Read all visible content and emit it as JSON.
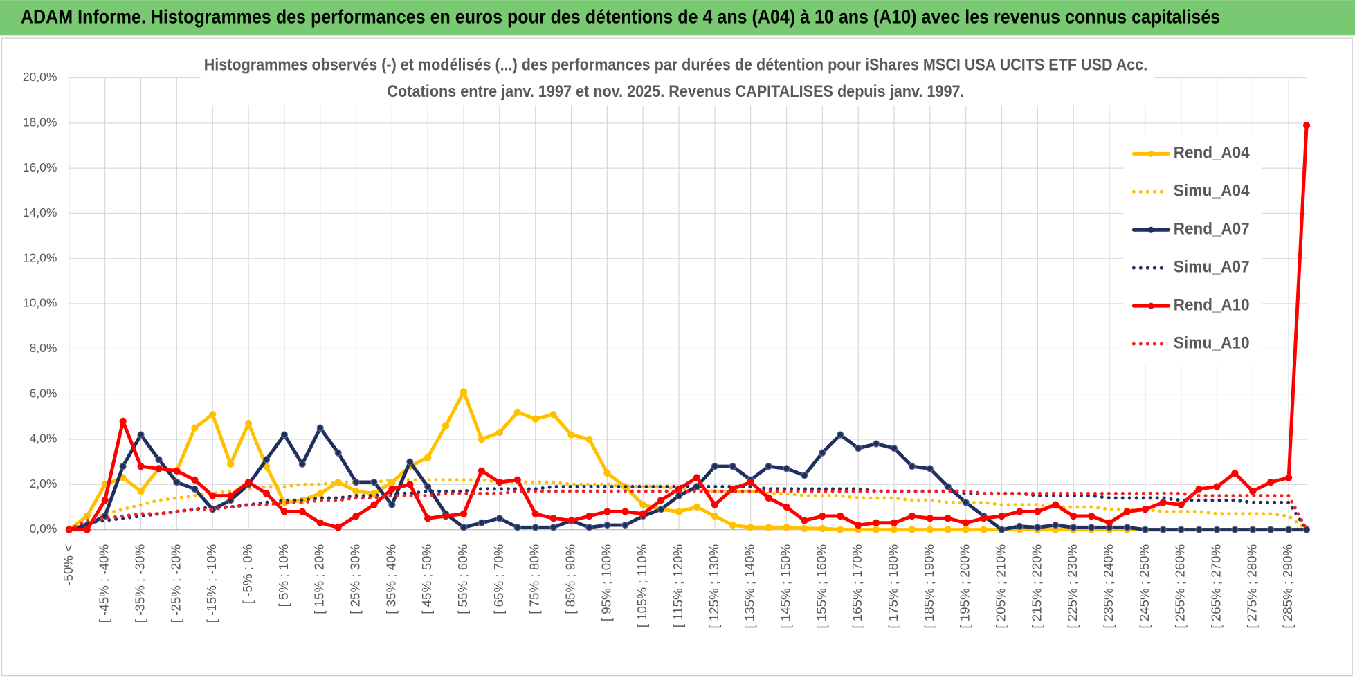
{
  "header": {
    "title": "ADAM Informe. Histogrammes des performances en euros pour des détentions de 4 ans (A04) à 10 ans (A10) avec les revenus connus capitalisés"
  },
  "chart_data": {
    "type": "line",
    "title": "Histogrammes observés (-) et modélisés (...) des performances par durées de détention pour iShares MSCI USA UCITS ETF USD Acc.",
    "subtitle": "Cotations entre janv. 1997 et nov. 2025. Revenus CAPITALISES depuis janv. 1997.",
    "categories": [
      "-50% <",
      null,
      "[ -45% ; -40%",
      null,
      "[ -35% ; -30%",
      null,
      "[ -25% ; -20%",
      null,
      "[ -15% ; -10%",
      null,
      "[ -5% ; 0%",
      null,
      "[ 5% ; 10%",
      null,
      "[ 15% ; 20%",
      null,
      "[ 25% ; 30%",
      null,
      "[ 35% ; 40%",
      null,
      "[ 45% ; 50%",
      null,
      "[ 55% ; 60%",
      null,
      "[ 65% ; 70%",
      null,
      "[ 75% ; 80%",
      null,
      "[ 85% ; 90%",
      null,
      "[ 95% ; 100%",
      null,
      "[ 105% ; 110%",
      null,
      "[ 115% ; 120%",
      null,
      "[ 125% ; 130%",
      null,
      "[ 135% ; 140%",
      null,
      "[ 145% ; 150%",
      null,
      "[ 155% ; 160%",
      null,
      "[ 165% ; 170%",
      null,
      "[ 175% ; 180%",
      null,
      "[ 185% ; 190%",
      null,
      "[ 195% ; 200%",
      null,
      "[ 205% ; 210%",
      null,
      "[ 215% ; 220%",
      null,
      "[ 225% ; 230%",
      null,
      "[ 235% ; 240%",
      null,
      "[ 245% ; 250%",
      null,
      "[ 255% ; 260%",
      null,
      "[ 265% ; 270%",
      null,
      "[ 275% ; 280%",
      null,
      "[ 285% ; 290%",
      null
    ],
    "ylim": [
      0,
      20
    ],
    "yticks": [
      {
        "value": 0,
        "label": "0,0%"
      },
      {
        "value": 2,
        "label": "2,0%"
      },
      {
        "value": 4,
        "label": "4,0%"
      },
      {
        "value": 6,
        "label": "6,0%"
      },
      {
        "value": 8,
        "label": "8,0%"
      },
      {
        "value": 10,
        "label": "10,0%"
      },
      {
        "value": 12,
        "label": "12,0%"
      },
      {
        "value": 14,
        "label": "14,0%"
      },
      {
        "value": 16,
        "label": "16,0%"
      },
      {
        "value": 18,
        "label": "18,0%"
      },
      {
        "value": 20,
        "label": "20,0%"
      }
    ],
    "grid": true,
    "legend": "right",
    "series": [
      {
        "name": "Rend_A04",
        "color": "#FFC000",
        "style": "solid",
        "markers": true,
        "values": [
          0,
          0.6,
          2.0,
          2.3,
          1.7,
          2.7,
          2.6,
          4.5,
          5.1,
          2.9,
          4.7,
          2.8,
          1.2,
          1.3,
          1.6,
          2.1,
          1.7,
          1.6,
          2.1,
          2.8,
          3.2,
          4.6,
          6.1,
          4.0,
          4.3,
          5.2,
          4.9,
          5.1,
          4.2,
          4.0,
          2.5,
          1.9,
          1.1,
          0.9,
          0.8,
          1.0,
          0.6,
          0.2,
          0.1,
          0.1,
          0.1,
          0.05,
          0.05,
          0,
          0,
          0,
          0,
          0,
          0,
          0,
          0,
          0,
          0,
          0,
          0,
          0,
          0,
          0,
          0,
          0,
          0,
          0,
          0,
          0,
          0,
          0,
          0,
          0,
          0,
          0
        ]
      },
      {
        "name": "Simu_A04",
        "color": "#FFC000",
        "style": "dotted",
        "markers": false,
        "values": [
          0,
          0.4,
          0.7,
          0.9,
          1.1,
          1.3,
          1.4,
          1.5,
          1.6,
          1.7,
          1.8,
          1.9,
          1.9,
          2.0,
          2.0,
          2.1,
          2.1,
          2.1,
          2.2,
          2.2,
          2.2,
          2.2,
          2.2,
          2.2,
          2.1,
          2.1,
          2.1,
          2.1,
          2.0,
          2.0,
          2.0,
          1.9,
          1.9,
          1.9,
          1.8,
          1.8,
          1.7,
          1.7,
          1.7,
          1.6,
          1.6,
          1.5,
          1.5,
          1.5,
          1.4,
          1.4,
          1.4,
          1.3,
          1.3,
          1.2,
          1.2,
          1.2,
          1.1,
          1.1,
          1.1,
          1.0,
          1.0,
          1.0,
          0.9,
          0.9,
          0.9,
          0.8,
          0.8,
          0.8,
          0.7,
          0.7,
          0.7,
          0.7,
          0.6,
          0
        ]
      },
      {
        "name": "Rend_A07",
        "color": "#1F2F5E",
        "style": "solid",
        "markers": true,
        "values": [
          0,
          0.2,
          0.6,
          2.8,
          4.2,
          3.1,
          2.1,
          1.8,
          0.9,
          1.3,
          2.0,
          3.1,
          4.2,
          2.9,
          4.5,
          3.4,
          2.1,
          2.1,
          1.1,
          3.0,
          1.9,
          0.7,
          0.1,
          0.3,
          0.5,
          0.1,
          0.1,
          0.1,
          0.4,
          0.1,
          0.2,
          0.2,
          0.6,
          0.9,
          1.5,
          1.9,
          2.8,
          2.8,
          2.2,
          2.8,
          2.7,
          2.4,
          3.4,
          4.2,
          3.6,
          3.8,
          3.6,
          2.8,
          2.7,
          1.9,
          1.2,
          0.6,
          0,
          0.15,
          0.1,
          0.2,
          0.1,
          0.1,
          0.1,
          0.1,
          0,
          0,
          0,
          0,
          0,
          0,
          0,
          0,
          0,
          0
        ]
      },
      {
        "name": "Simu_A07",
        "color": "#1F2F5E",
        "style": "dotted",
        "markers": false,
        "values": [
          0,
          0.3,
          0.4,
          0.5,
          0.6,
          0.7,
          0.8,
          0.9,
          1.0,
          1.0,
          1.1,
          1.2,
          1.3,
          1.3,
          1.4,
          1.4,
          1.5,
          1.5,
          1.6,
          1.6,
          1.7,
          1.7,
          1.7,
          1.8,
          1.8,
          1.8,
          1.8,
          1.9,
          1.9,
          1.9,
          1.9,
          1.9,
          1.9,
          1.9,
          1.9,
          1.9,
          1.9,
          1.9,
          1.9,
          1.8,
          1.8,
          1.8,
          1.8,
          1.8,
          1.8,
          1.7,
          1.7,
          1.7,
          1.7,
          1.7,
          1.6,
          1.6,
          1.6,
          1.6,
          1.5,
          1.5,
          1.5,
          1.5,
          1.4,
          1.4,
          1.4,
          1.4,
          1.3,
          1.3,
          1.3,
          1.3,
          1.2,
          1.2,
          1.2,
          0
        ]
      },
      {
        "name": "Rend_A10",
        "color": "#FF0000",
        "style": "solid",
        "markers": true,
        "values": [
          0,
          0,
          1.3,
          4.8,
          2.8,
          2.7,
          2.6,
          2.2,
          1.5,
          1.5,
          2.1,
          1.6,
          0.8,
          0.8,
          0.3,
          0.1,
          0.6,
          1.1,
          1.8,
          2.0,
          0.5,
          0.6,
          0.7,
          2.6,
          2.1,
          2.2,
          0.7,
          0.5,
          0.4,
          0.6,
          0.8,
          0.8,
          0.7,
          1.3,
          1.8,
          2.3,
          1.1,
          1.8,
          2.1,
          1.4,
          1.0,
          0.4,
          0.6,
          0.6,
          0.2,
          0.3,
          0.3,
          0.6,
          0.5,
          0.5,
          0.3,
          0.5,
          0.6,
          0.8,
          0.8,
          1.1,
          0.6,
          0.6,
          0.3,
          0.8,
          0.9,
          1.2,
          1.1,
          1.8,
          1.9,
          2.5,
          1.7,
          2.1,
          2.3,
          17.9
        ]
      },
      {
        "name": "Simu_A10",
        "color": "#F0202A",
        "style": "dotted",
        "markers": false,
        "values": [
          0,
          0.4,
          0.5,
          0.6,
          0.7,
          0.7,
          0.8,
          0.9,
          0.9,
          1.0,
          1.1,
          1.1,
          1.2,
          1.2,
          1.3,
          1.3,
          1.4,
          1.4,
          1.5,
          1.5,
          1.5,
          1.6,
          1.6,
          1.6,
          1.6,
          1.7,
          1.7,
          1.7,
          1.7,
          1.7,
          1.7,
          1.7,
          1.7,
          1.7,
          1.7,
          1.7,
          1.7,
          1.7,
          1.7,
          1.7,
          1.7,
          1.7,
          1.7,
          1.7,
          1.7,
          1.7,
          1.7,
          1.7,
          1.7,
          1.7,
          1.7,
          1.6,
          1.6,
          1.6,
          1.6,
          1.6,
          1.6,
          1.6,
          1.6,
          1.6,
          1.6,
          1.6,
          1.6,
          1.5,
          1.5,
          1.5,
          1.5,
          1.5,
          1.5,
          0
        ]
      }
    ]
  }
}
